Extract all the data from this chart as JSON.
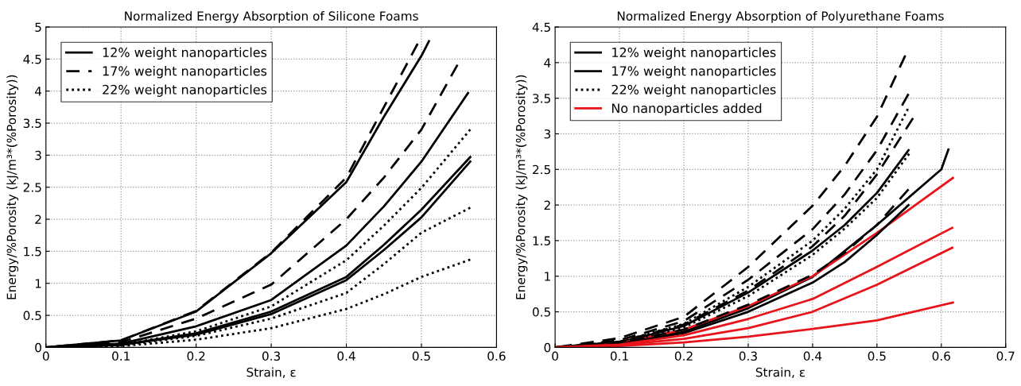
{
  "chart_data": [
    {
      "type": "line",
      "title": "Normalized Energy Absorption of Silicone Foams",
      "xlabel": "Strain, ε",
      "ylabel": "Energy/%Porosity (kJ/m³*(%Porosity))",
      "xlim": [
        0,
        0.6
      ],
      "xticks": [
        0,
        0.1,
        0.2,
        0.3,
        0.4,
        0.5,
        0.6
      ],
      "ylim": [
        0,
        5
      ],
      "yticks": [
        0,
        0.5,
        1,
        1.5,
        2,
        2.5,
        3,
        3.5,
        4,
        4.5,
        5
      ],
      "grid": true,
      "legend": "top left",
      "marker": "none",
      "series": [
        {
          "name": "12% weight nanoparticles",
          "color": "#000000",
          "line_style": "solid",
          "x": [
            0,
            0.1,
            0.2,
            0.3,
            0.4,
            0.45,
            0.5,
            0.51
          ],
          "values": [
            0,
            0.11,
            0.56,
            1.47,
            2.58,
            3.6,
            4.55,
            4.78
          ]
        },
        {
          "name": "17% weight nanoparticles",
          "color": "#000000",
          "line_style": "dashed",
          "x": [
            0,
            0.1,
            0.2,
            0.3,
            0.4,
            0.45,
            0.495
          ],
          "values": [
            0,
            0.11,
            0.57,
            1.48,
            2.65,
            3.75,
            4.74
          ]
        },
        {
          "name": "22% weight nanoparticles",
          "color": "#000000",
          "line_style": "dotted",
          "x": [
            0,
            0.1,
            0.2,
            0.3,
            0.4,
            0.45,
            0.5,
            0.565
          ],
          "values": [
            0,
            0.04,
            0.25,
            0.64,
            1.36,
            1.9,
            2.49,
            3.4
          ]
        },
        {
          "color": "#000000",
          "line_style": "dashed",
          "x": [
            0,
            0.1,
            0.2,
            0.3,
            0.4,
            0.45,
            0.5,
            0.548
          ],
          "values": [
            0,
            0.08,
            0.45,
            0.98,
            2.0,
            2.65,
            3.4,
            4.41
          ]
        },
        {
          "color": "#000000",
          "line_style": "solid",
          "x": [
            0,
            0.1,
            0.2,
            0.3,
            0.4,
            0.45,
            0.5,
            0.562
          ],
          "values": [
            0,
            0.06,
            0.33,
            0.74,
            1.59,
            2.2,
            2.9,
            3.97
          ]
        },
        {
          "color": "#000000",
          "line_style": "solid",
          "x": [
            0,
            0.1,
            0.2,
            0.3,
            0.4,
            0.45,
            0.5,
            0.565
          ],
          "values": [
            0,
            0.04,
            0.22,
            0.56,
            1.1,
            1.6,
            2.15,
            2.97
          ]
        },
        {
          "color": "#000000",
          "line_style": "solid",
          "x": [
            0,
            0.1,
            0.2,
            0.3,
            0.4,
            0.45,
            0.5,
            0.565
          ],
          "values": [
            0,
            0.04,
            0.2,
            0.52,
            1.05,
            1.52,
            2.03,
            2.9
          ]
        },
        {
          "color": "#000000",
          "line_style": "dotted",
          "x": [
            0,
            0.1,
            0.2,
            0.3,
            0.4,
            0.45,
            0.5,
            0.565
          ],
          "values": [
            0,
            0.03,
            0.18,
            0.45,
            0.85,
            1.3,
            1.79,
            2.18
          ]
        },
        {
          "color": "#000000",
          "line_style": "dotted",
          "x": [
            0,
            0.1,
            0.2,
            0.3,
            0.4,
            0.45,
            0.5,
            0.565
          ],
          "values": [
            0,
            0.02,
            0.12,
            0.3,
            0.6,
            0.83,
            1.1,
            1.37
          ]
        }
      ]
    },
    {
      "type": "line",
      "title": "Normalized Energy Absorption of Polyurethane Foams",
      "xlabel": "Strain, ε",
      "ylabel": "Energy/%Porosity (kJ/m³*(%Porosity))",
      "xlim": [
        0,
        0.7
      ],
      "xticks": [
        0,
        0.1,
        0.2,
        0.3,
        0.4,
        0.5,
        0.6,
        0.7
      ],
      "ylim": [
        0,
        4.5
      ],
      "yticks": [
        0,
        0.5,
        1,
        1.5,
        2,
        2.5,
        3,
        3.5,
        4,
        4.5
      ],
      "grid": true,
      "legend": "top left",
      "marker": "none",
      "series": [
        {
          "name": "12% weight nanoparticles",
          "color": "#000000",
          "line_style": "solid",
          "x": [
            0,
            0.1,
            0.2,
            0.3,
            0.4,
            0.5,
            0.6,
            0.611
          ],
          "values": [
            0,
            0.05,
            0.22,
            0.55,
            0.99,
            1.72,
            2.5,
            2.78
          ]
        },
        {
          "name": "17% weight nanoparticles",
          "color": "#000000",
          "line_style": "solid",
          "x": [
            0,
            0.1,
            0.2,
            0.3,
            0.4,
            0.45,
            0.5,
            0.549
          ],
          "values": [
            0,
            0.07,
            0.3,
            0.77,
            1.36,
            1.72,
            2.17,
            2.77
          ]
        },
        {
          "name": "22% weight nanoparticles",
          "color": "#000000",
          "line_style": "dotted",
          "x": [
            0,
            0.1,
            0.2,
            0.3,
            0.4,
            0.45,
            0.5,
            0.548
          ],
          "values": [
            0,
            0.08,
            0.33,
            0.85,
            1.5,
            1.95,
            2.5,
            3.35
          ]
        },
        {
          "name": "No nanoparticles added",
          "color": "#e8141b",
          "line_style": "solid",
          "x": [
            0,
            0.1,
            0.2,
            0.3,
            0.4,
            0.5,
            0.618
          ],
          "values": [
            0,
            0.06,
            0.25,
            0.58,
            1.0,
            1.61,
            2.38
          ]
        },
        {
          "color": "#000000",
          "line_style": "dashed",
          "x": [
            0,
            0.1,
            0.2,
            0.3,
            0.4,
            0.45,
            0.5,
            0.544
          ],
          "values": [
            0,
            0.13,
            0.43,
            1.13,
            1.99,
            2.55,
            3.24,
            4.1
          ]
        },
        {
          "color": "#000000",
          "line_style": "dashed",
          "x": [
            0,
            0.1,
            0.2,
            0.3,
            0.4,
            0.45,
            0.5,
            0.549
          ],
          "values": [
            0,
            0.1,
            0.37,
            0.95,
            1.66,
            2.15,
            2.77,
            3.56
          ]
        },
        {
          "color": "#000000",
          "line_style": "dashed",
          "x": [
            0,
            0.1,
            0.2,
            0.3,
            0.4,
            0.45,
            0.5,
            0.556
          ],
          "values": [
            0,
            0.08,
            0.32,
            0.8,
            1.42,
            1.85,
            2.43,
            3.22
          ]
        },
        {
          "color": "#000000",
          "line_style": "dotted",
          "x": [
            0,
            0.1,
            0.2,
            0.3,
            0.4,
            0.45,
            0.5,
            0.55
          ],
          "values": [
            0,
            0.06,
            0.28,
            0.72,
            1.3,
            1.67,
            2.1,
            2.72
          ]
        },
        {
          "color": "#000000",
          "line_style": "dashed",
          "x": [
            0,
            0.1,
            0.2,
            0.3,
            0.4,
            0.45,
            0.5,
            0.549
          ],
          "values": [
            0,
            0.06,
            0.25,
            0.6,
            1.02,
            1.33,
            1.72,
            2.22
          ]
        },
        {
          "color": "#000000",
          "line_style": "solid",
          "x": [
            0,
            0.1,
            0.2,
            0.3,
            0.4,
            0.45,
            0.5,
            0.549
          ],
          "values": [
            0,
            0.05,
            0.2,
            0.5,
            0.91,
            1.2,
            1.58,
            2.0
          ]
        },
        {
          "color": "#e8141b",
          "line_style": "solid",
          "x": [
            0,
            0.1,
            0.2,
            0.3,
            0.4,
            0.5,
            0.617
          ],
          "values": [
            0,
            0.04,
            0.17,
            0.4,
            0.68,
            1.13,
            1.68
          ]
        },
        {
          "color": "#e8141b",
          "line_style": "solid",
          "x": [
            0,
            0.1,
            0.2,
            0.3,
            0.4,
            0.5,
            0.617
          ],
          "values": [
            0,
            0.03,
            0.12,
            0.27,
            0.5,
            0.88,
            1.4
          ]
        },
        {
          "color": "#e8141b",
          "line_style": "solid",
          "x": [
            0,
            0.1,
            0.2,
            0.3,
            0.4,
            0.5,
            0.618
          ],
          "values": [
            0,
            0.02,
            0.07,
            0.15,
            0.26,
            0.38,
            0.63
          ]
        }
      ]
    }
  ]
}
